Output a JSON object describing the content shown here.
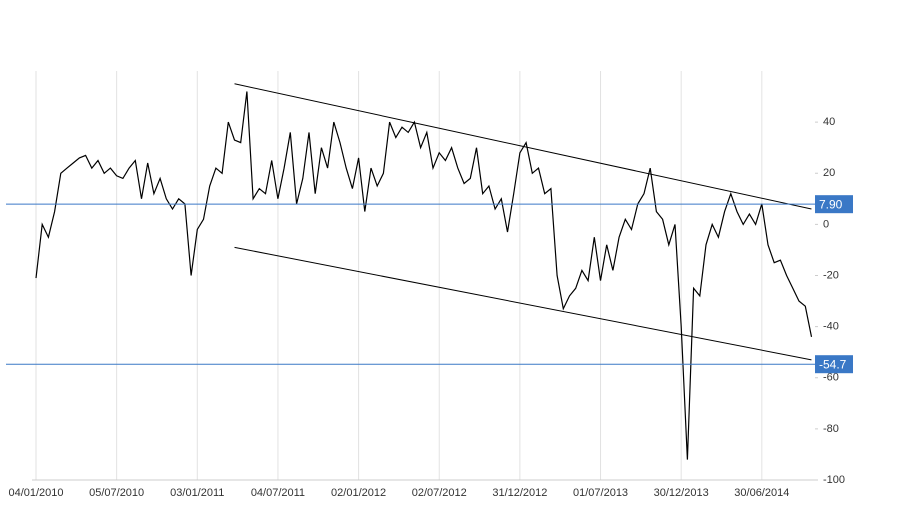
{
  "chart_data": {
    "type": "line",
    "x": [
      "04/01/2010",
      "18/01/2010",
      "01/02/2010",
      "15/02/2010",
      "01/03/2010",
      "15/03/2010",
      "29/03/2010",
      "12/04/2010",
      "26/04/2010",
      "10/05/2010",
      "24/05/2010",
      "07/06/2010",
      "21/06/2010",
      "05/07/2010",
      "19/07/2010",
      "02/08/2010",
      "16/08/2010",
      "30/08/2010",
      "13/09/2010",
      "27/09/2010",
      "11/10/2010",
      "25/10/2010",
      "08/11/2010",
      "22/11/2010",
      "06/12/2010",
      "20/12/2010",
      "03/01/2011",
      "17/01/2011",
      "31/01/2011",
      "14/02/2011",
      "28/02/2011",
      "14/03/2011",
      "28/03/2011",
      "11/04/2011",
      "25/04/2011",
      "09/05/2011",
      "23/05/2011",
      "06/06/2011",
      "20/06/2011",
      "04/07/2011",
      "18/07/2011",
      "01/08/2011",
      "15/08/2011",
      "29/08/2011",
      "12/09/2011",
      "26/09/2011",
      "10/10/2011",
      "24/10/2011",
      "07/11/2011",
      "21/11/2011",
      "05/12/2011",
      "19/12/2011",
      "02/01/2012",
      "16/01/2012",
      "30/01/2012",
      "13/02/2012",
      "27/02/2012",
      "12/03/2012",
      "26/03/2012",
      "09/04/2012",
      "23/04/2012",
      "07/05/2012",
      "21/05/2012",
      "04/06/2012",
      "18/06/2012",
      "02/07/2012",
      "16/07/2012",
      "30/07/2012",
      "13/08/2012",
      "27/08/2012",
      "10/09/2012",
      "24/09/2012",
      "08/10/2012",
      "22/10/2012",
      "05/11/2012",
      "19/11/2012",
      "03/12/2012",
      "17/12/2012",
      "31/12/2012",
      "14/01/2013",
      "28/01/2013",
      "11/02/2013",
      "25/02/2013",
      "11/03/2013",
      "25/03/2013",
      "08/04/2013",
      "22/04/2013",
      "06/05/2013",
      "20/05/2013",
      "03/06/2013",
      "17/06/2013",
      "01/07/2013",
      "15/07/2013",
      "29/07/2013",
      "12/08/2013",
      "26/08/2013",
      "09/09/2013",
      "23/09/2013",
      "07/10/2013",
      "21/10/2013",
      "04/11/2013",
      "18/11/2013",
      "02/12/2013",
      "16/12/2013",
      "30/12/2013",
      "13/01/2014",
      "27/01/2014",
      "10/02/2014",
      "24/02/2014",
      "10/03/2014",
      "24/03/2014",
      "07/04/2014",
      "21/04/2014",
      "05/05/2014",
      "19/05/2014",
      "02/06/2014",
      "16/06/2014",
      "30/06/2014",
      "14/07/2014",
      "28/07/2014",
      "11/08/2014",
      "25/08/2014",
      "08/09/2014",
      "22/09/2014",
      "06/10/2014",
      "20/10/2014"
    ],
    "values": [
      -21,
      0,
      -5,
      5,
      20,
      22,
      24,
      26,
      27,
      22,
      25,
      20,
      22,
      19,
      18,
      22,
      25,
      10,
      24,
      12,
      18,
      10,
      6,
      10,
      8,
      -20,
      -2,
      2,
      15,
      22,
      20,
      40,
      33,
      32,
      52,
      10,
      14,
      12,
      25,
      10,
      22,
      36,
      8,
      18,
      36,
      12,
      30,
      22,
      40,
      32,
      22,
      14,
      26,
      5,
      22,
      15,
      20,
      40,
      34,
      38,
      36,
      40,
      30,
      36,
      22,
      28,
      25,
      30,
      22,
      16,
      18,
      30,
      12,
      15,
      6,
      10,
      -3,
      12,
      28,
      32,
      20,
      22,
      12,
      14,
      -20,
      -33,
      -28,
      -25,
      -18,
      -22,
      -5,
      -22,
      -8,
      -18,
      -5,
      2,
      -2,
      8,
      12,
      22,
      5,
      2,
      -8,
      0,
      -40,
      -92,
      -25,
      -28,
      -8,
      0,
      -5,
      5,
      12,
      5,
      0,
      4,
      0,
      8,
      -8,
      -15,
      -14,
      -20,
      -25,
      -30,
      -32,
      -44
    ],
    "color": "#000000",
    "xlim": [
      "04/01/2010",
      "28/10/2014"
    ],
    "xticks": [
      "04/01/2010",
      "05/07/2010",
      "03/01/2011",
      "04/07/2011",
      "02/01/2012",
      "02/07/2012",
      "31/12/2012",
      "01/07/2013",
      "30/12/2013",
      "30/06/2014"
    ],
    "ylim": [
      -100,
      60
    ],
    "yticks": [
      40,
      20,
      0,
      -20,
      -40,
      -60,
      -80,
      -100
    ],
    "grid": "x",
    "hlines": [
      {
        "value": 7.9,
        "label": "7.90",
        "color": "#3a78c6"
      },
      {
        "value": -54.7,
        "label": "-54.7",
        "color": "#3a78c6"
      }
    ],
    "trendlines": [
      {
        "x": [
          "28/03/2011",
          "20/10/2014"
        ],
        "values": [
          55,
          6
        ]
      },
      {
        "x": [
          "28/03/2011",
          "20/10/2014"
        ],
        "values": [
          -9,
          -53
        ]
      }
    ]
  }
}
